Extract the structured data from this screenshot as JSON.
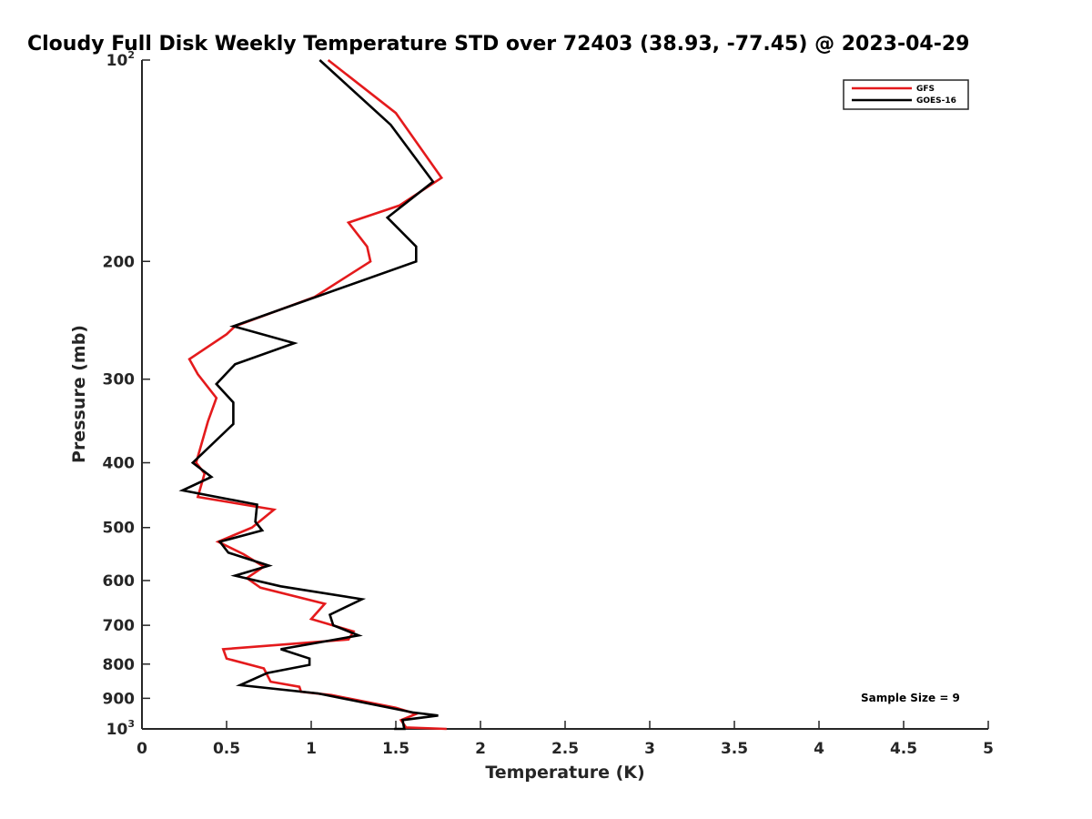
{
  "chart_data": {
    "type": "line",
    "title": "Cloudy Full Disk Weekly Temperature STD over 72403 (38.93, -77.45) @ 2023-04-29",
    "xlabel": "Temperature (K)",
    "ylabel": "Pressure (mb)",
    "xlim": [
      0,
      5
    ],
    "ylim": [
      100,
      1000
    ],
    "y_scale": "log",
    "y_reversed": true,
    "grid": false,
    "legend_position": "top-right",
    "x_ticks": [
      "0",
      "0.5",
      "1",
      "1.5",
      "2",
      "2.5",
      "3",
      "3.5",
      "4",
      "4.5",
      "5"
    ],
    "y_ticks": [
      {
        "value": 100,
        "base": "10",
        "exp": "2"
      },
      {
        "value": 200,
        "label": "200"
      },
      {
        "value": 300,
        "label": "300"
      },
      {
        "value": 400,
        "label": "400"
      },
      {
        "value": 500,
        "label": "500"
      },
      {
        "value": 600,
        "label": "600"
      },
      {
        "value": 700,
        "label": "700"
      },
      {
        "value": 800,
        "label": "800"
      },
      {
        "value": 900,
        "label": "900"
      },
      {
        "value": 1000,
        "base": "10",
        "exp": "3"
      }
    ],
    "annotation": "Sample Size = 9",
    "series": [
      {
        "name": "GFS",
        "color": "#e41a1c",
        "points": [
          [
            1.1,
            100
          ],
          [
            1.5,
            120
          ],
          [
            1.77,
            150
          ],
          [
            1.52,
            165
          ],
          [
            1.22,
            175
          ],
          [
            1.33,
            190
          ],
          [
            1.35,
            200
          ],
          [
            1.02,
            226
          ],
          [
            0.55,
            250
          ],
          [
            0.5,
            257
          ],
          [
            0.28,
            280
          ],
          [
            0.33,
            295
          ],
          [
            0.44,
            320
          ],
          [
            0.39,
            347
          ],
          [
            0.32,
            400
          ],
          [
            0.37,
            415
          ],
          [
            0.33,
            450
          ],
          [
            0.78,
            470
          ],
          [
            0.65,
            500
          ],
          [
            0.45,
            525
          ],
          [
            0.6,
            548
          ],
          [
            0.72,
            572
          ],
          [
            0.62,
            595
          ],
          [
            0.7,
            615
          ],
          [
            1.08,
            650
          ],
          [
            1.0,
            685
          ],
          [
            1.25,
            715
          ],
          [
            1.22,
            735
          ],
          [
            0.48,
            760
          ],
          [
            0.5,
            785
          ],
          [
            0.72,
            812
          ],
          [
            0.76,
            850
          ],
          [
            0.93,
            865
          ],
          [
            0.94,
            880
          ],
          [
            1.12,
            890
          ],
          [
            1.5,
            930
          ],
          [
            1.62,
            950
          ],
          [
            1.53,
            970
          ],
          [
            1.56,
            995
          ],
          [
            1.8,
            1000
          ]
        ]
      },
      {
        "name": "GOES-16",
        "color": "#000000",
        "points": [
          [
            1.05,
            100
          ],
          [
            1.47,
            125
          ],
          [
            1.72,
            152
          ],
          [
            1.45,
            172
          ],
          [
            1.62,
            190
          ],
          [
            1.62,
            200
          ],
          [
            0.54,
            250
          ],
          [
            0.9,
            265
          ],
          [
            0.55,
            285
          ],
          [
            0.44,
            305
          ],
          [
            0.54,
            325
          ],
          [
            0.54,
            350
          ],
          [
            0.3,
            400
          ],
          [
            0.41,
            420
          ],
          [
            0.24,
            440
          ],
          [
            0.68,
            462
          ],
          [
            0.67,
            490
          ],
          [
            0.71,
            505
          ],
          [
            0.46,
            525
          ],
          [
            0.51,
            545
          ],
          [
            0.75,
            570
          ],
          [
            0.55,
            590
          ],
          [
            0.82,
            612
          ],
          [
            1.3,
            640
          ],
          [
            1.11,
            675
          ],
          [
            1.13,
            700
          ],
          [
            1.28,
            725
          ],
          [
            0.82,
            760
          ],
          [
            0.99,
            785
          ],
          [
            0.99,
            802
          ],
          [
            0.74,
            825
          ],
          [
            0.58,
            860
          ],
          [
            1.04,
            885
          ],
          [
            1.6,
            945
          ],
          [
            1.75,
            955
          ],
          [
            1.54,
            970
          ],
          [
            1.55,
            1000
          ],
          [
            1.49,
            1000
          ]
        ]
      }
    ]
  }
}
